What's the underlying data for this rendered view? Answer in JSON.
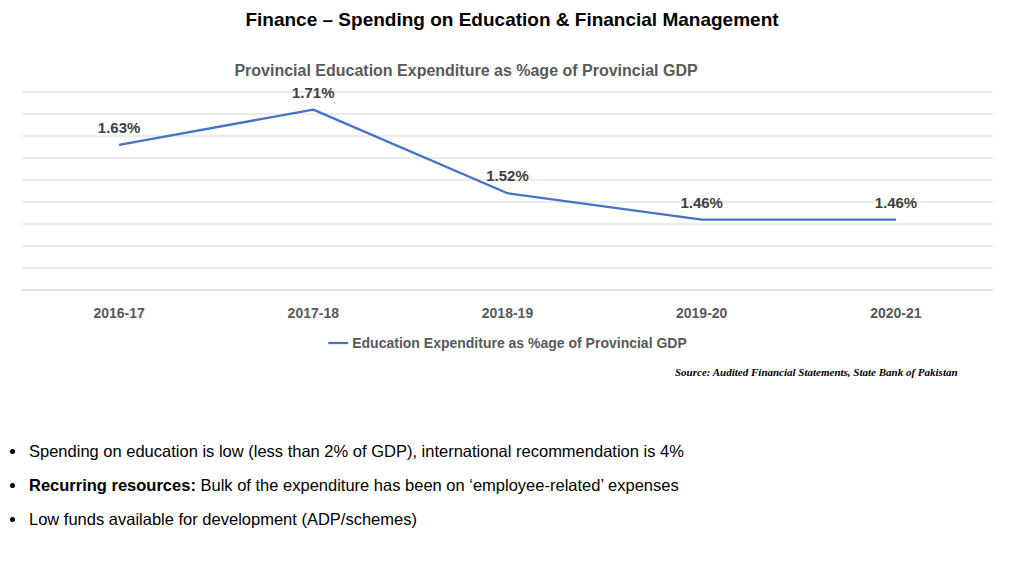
{
  "page_title": "Finance – Spending on Education & Financial Management",
  "chart_data": {
    "type": "line",
    "title": "Provincial Education Expenditure as %age of Provincial GDP",
    "categories": [
      "2016-17",
      "2017-18",
      "2018-19",
      "2019-20",
      "2020-21"
    ],
    "series": [
      {
        "name": "Education Expenditure as %age of Provincial GDP",
        "color": "#4472c4",
        "values": [
          1.63,
          1.71,
          1.52,
          1.46,
          1.46
        ],
        "value_labels": [
          "1.63%",
          "1.71%",
          "1.52%",
          "1.46%",
          "1.46%"
        ]
      }
    ],
    "ylim": [
      1.3,
      1.75
    ],
    "yticks": [
      1.3,
      1.35,
      1.4,
      1.45,
      1.5,
      1.55,
      1.6,
      1.65,
      1.7,
      1.75
    ],
    "grid": true,
    "tick_labels": "x",
    "data_labels": true,
    "legend": "bottom"
  },
  "source": "Source: Audited Financial Statements, State Bank of Pakistan",
  "bullets": [
    {
      "text": "Spending on education is low (less than 2% of GDP), international recommendation is 4%"
    },
    {
      "lead": "Recurring resources:",
      "text": " Bulk of the expenditure has been on ‘employee-related’ expenses"
    },
    {
      "text": "Low funds available for development (ADP/schemes)"
    }
  ]
}
